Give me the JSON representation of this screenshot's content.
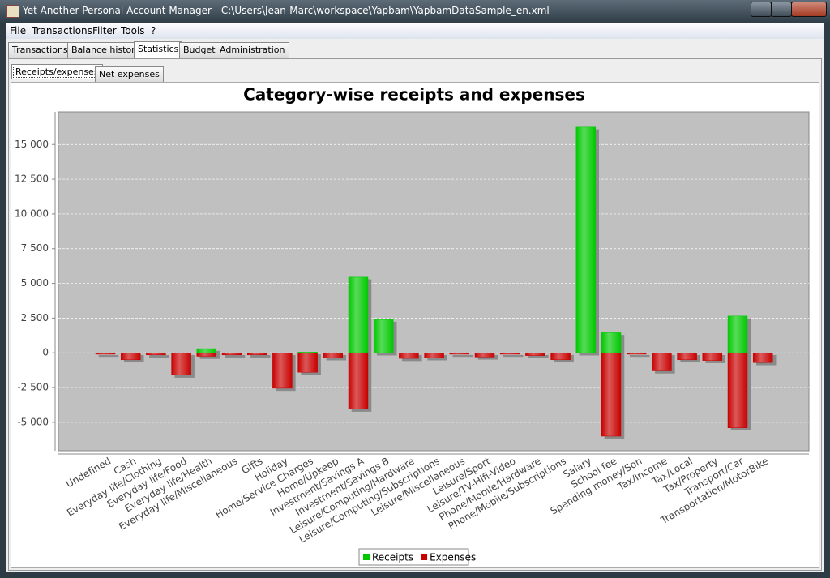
{
  "window": {
    "title": "Yet Another Personal Account Manager - C:\\Users\\Jean-Marc\\workspace\\Yapbam\\YapbamDataSample_en.xml"
  },
  "menu": [
    "File",
    "Transactions",
    "Filter",
    "Tools",
    "?"
  ],
  "tabs": [
    "Transactions",
    "Balance history",
    "Statistics",
    "Budget",
    "Administration"
  ],
  "subtabs": [
    "Receipts/expenses",
    "Net expenses"
  ],
  "chart_data": {
    "type": "bar",
    "title": "Category-wise receipts and expenses",
    "categories": [
      "Undefined",
      "Cash",
      "Everyday life/Clothing",
      "Everyday life/Food",
      "Everyday life/Health",
      "Everyday life/Miscellaneous",
      "Gifts",
      "Holiday",
      "Home/Service Charges",
      "Home/Upkeep",
      "Investment/Savings A",
      "Investment/Savings B",
      "Leisure/Computing/Hardware",
      "Leisure/Computing/Subscriptions",
      "Leisure/Miscellaneous",
      "Leisure/Sport",
      "Leisure/TV-Hifi-Video",
      "Phone/Mobile/Hardware",
      "Phone/Mobile/Subscriptions",
      "Salary",
      "School fee",
      "Spending money/Son",
      "Tax/Income",
      "Tax/Local",
      "Tax/Property",
      "Transport/Car",
      "Transportation/MotorBike"
    ],
    "series": [
      {
        "name": "Receipts",
        "color": "#00c800",
        "values": [
          0,
          0,
          0,
          0,
          300,
          0,
          0,
          0,
          50,
          0,
          5450,
          2400,
          0,
          0,
          0,
          0,
          0,
          0,
          0,
          16250,
          1450,
          0,
          0,
          0,
          0,
          2650,
          0
        ]
      },
      {
        "name": "Expenses",
        "color": "#c80000",
        "values": [
          -100,
          -500,
          -150,
          -1600,
          -250,
          -150,
          -150,
          -2550,
          -1400,
          -350,
          -4050,
          0,
          -400,
          -350,
          -100,
          -300,
          -100,
          -200,
          -500,
          0,
          -6000,
          -100,
          -1300,
          -500,
          -550,
          -5400,
          -700
        ]
      }
    ],
    "ylim": [
      -7050,
      17350
    ],
    "yticks": [
      {
        "value": -5000,
        "label": "-5 000"
      },
      {
        "value": -2500,
        "label": "-2 500"
      },
      0,
      {
        "value": 2500,
        "label": "2 500"
      },
      {
        "value": 5000,
        "label": "5 000"
      },
      {
        "value": 7500,
        "label": "7 500"
      },
      {
        "value": 10000,
        "label": "10 000"
      },
      {
        "value": 12500,
        "label": "12 500"
      },
      {
        "value": 15000,
        "label": "15 000"
      }
    ],
    "grid": true,
    "legend": "bottom"
  }
}
